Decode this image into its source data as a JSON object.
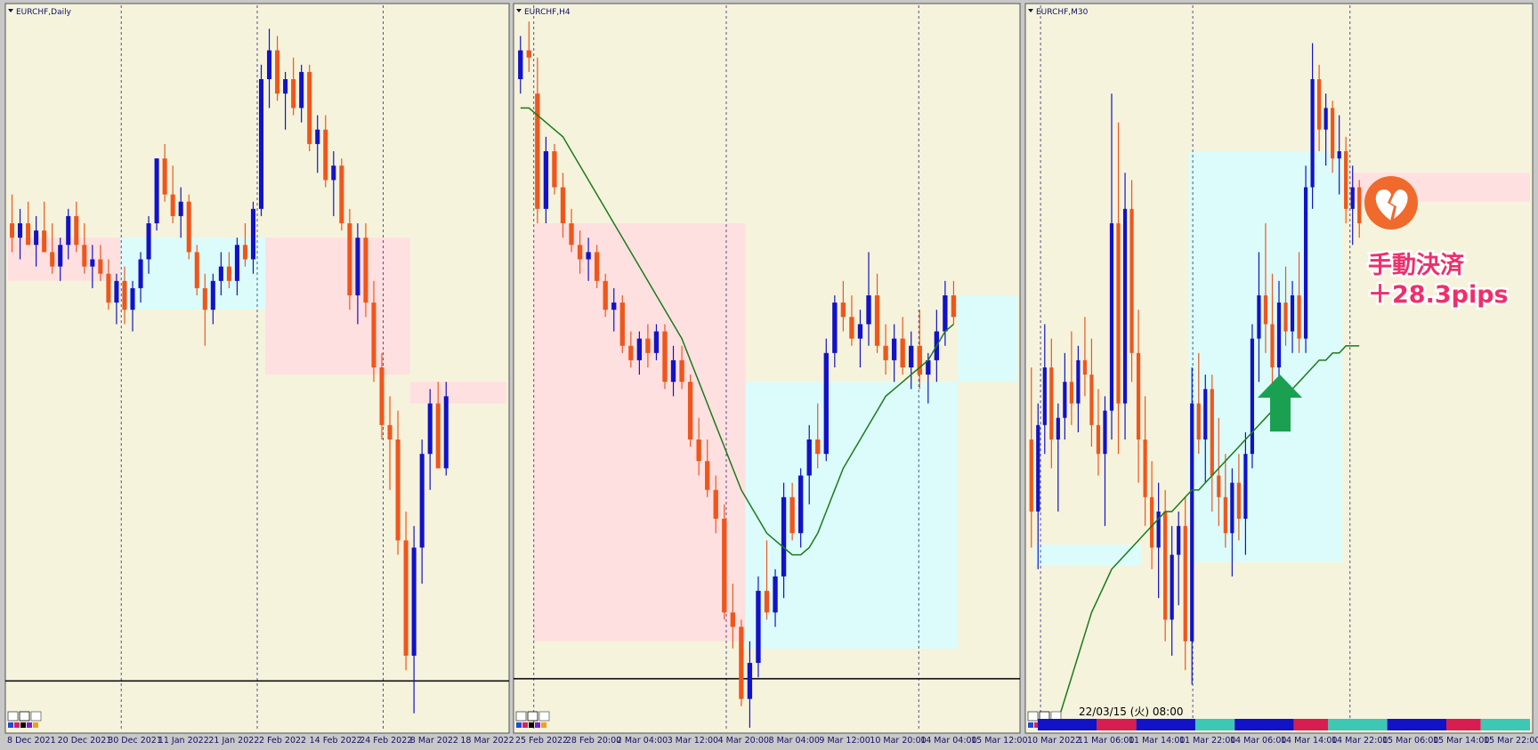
{
  "chart_data": [
    {
      "type": "candlestick",
      "title": "EURCHF,Daily",
      "ylim": [
        0,
        100
      ],
      "up_color": "#1212c8",
      "down_color": "#f0561c",
      "x_labels": [
        "8 Dec 2021",
        "20 Dec 2021",
        "30 Dec 2021",
        "11 Jan 2022",
        "21 Jan 2022",
        "2 Feb 2022",
        "14 Feb 2022",
        "24 Feb 2022",
        "8 Mar 2022",
        "18 Mar 2022"
      ],
      "candles": [
        [
          70,
          74,
          66,
          68
        ],
        [
          68,
          72,
          65,
          70
        ],
        [
          70,
          73,
          67,
          67
        ],
        [
          67,
          71,
          64,
          69
        ],
        [
          69,
          73,
          66,
          66
        ],
        [
          66,
          70,
          63,
          64
        ],
        [
          64,
          68,
          62,
          67
        ],
        [
          67,
          72,
          65,
          71
        ],
        [
          71,
          73,
          66,
          67
        ],
        [
          67,
          70,
          63,
          64
        ],
        [
          64,
          67,
          61,
          65
        ],
        [
          65,
          67,
          62,
          63
        ],
        [
          63,
          65,
          58,
          59
        ],
        [
          59,
          63,
          56,
          62
        ],
        [
          62,
          64,
          56,
          58
        ],
        [
          58,
          62,
          55,
          61
        ],
        [
          61,
          66,
          59,
          65
        ],
        [
          65,
          71,
          63,
          70
        ],
        [
          70,
          79,
          69,
          79
        ],
        [
          79,
          81,
          73,
          74
        ],
        [
          74,
          78,
          70,
          71
        ],
        [
          71,
          75,
          68,
          73
        ],
        [
          73,
          74,
          65,
          66
        ],
        [
          66,
          67,
          60,
          61
        ],
        [
          61,
          63,
          53,
          58
        ],
        [
          58,
          63,
          56,
          62
        ],
        [
          62,
          66,
          60,
          64
        ],
        [
          64,
          66,
          61,
          62
        ],
        [
          62,
          68,
          60,
          67
        ],
        [
          67,
          70,
          64,
          65
        ],
        [
          65,
          73,
          63,
          72
        ],
        [
          72,
          92,
          71,
          90
        ],
        [
          90,
          97,
          86,
          94
        ],
        [
          94,
          96,
          87,
          88
        ],
        [
          88,
          91,
          83,
          90
        ],
        [
          90,
          93,
          85,
          86
        ],
        [
          86,
          92,
          84,
          91
        ],
        [
          91,
          92,
          80,
          81
        ],
        [
          81,
          85,
          77,
          83
        ],
        [
          83,
          85,
          75,
          76
        ],
        [
          76,
          80,
          71,
          78
        ],
        [
          78,
          79,
          69,
          70
        ],
        [
          70,
          72,
          58,
          60
        ],
        [
          60,
          70,
          56,
          68
        ],
        [
          68,
          70,
          57,
          59
        ],
        [
          59,
          62,
          48,
          50
        ],
        [
          50,
          52,
          40,
          42
        ],
        [
          42,
          46,
          33,
          40
        ],
        [
          40,
          44,
          24,
          26
        ],
        [
          26,
          30,
          8,
          10
        ],
        [
          10,
          28,
          2,
          25
        ],
        [
          25,
          40,
          20,
          38
        ],
        [
          38,
          47,
          33,
          45
        ],
        [
          45,
          48,
          36,
          36
        ],
        [
          36,
          48,
          35,
          46
        ]
      ],
      "zones": [
        {
          "x": [
            0,
            14
          ],
          "y": [
            62,
            68
          ],
          "color": "#ffe0e0"
        },
        {
          "x": [
            14,
            33
          ],
          "y": [
            58,
            68
          ],
          "color": "#dcfcfb"
        },
        {
          "x": [
            32,
            50
          ],
          "y": [
            49,
            68
          ],
          "color": "#ffe0e0"
        },
        {
          "x": [
            50,
            62
          ],
          "y": [
            45,
            48
          ],
          "color": "#ffe0e0"
        }
      ],
      "hline": 6.5
    },
    {
      "type": "candlestick",
      "title": "EURCHF,H4",
      "ylim": [
        0,
        100
      ],
      "up_color": "#1212c8",
      "down_color": "#f0561c",
      "x_labels": [
        "25 Feb 2022",
        "28 Feb 20:00",
        "2 Mar 04:00",
        "3 Mar 12:00",
        "4 Mar 20:00",
        "8 Mar 04:00",
        "9 Mar 12:00",
        "10 Mar 20:00",
        "14 Mar 04:00",
        "15 Mar 12:00"
      ],
      "candles": [
        [
          90,
          96,
          88,
          94
        ],
        [
          94,
          98,
          91,
          93
        ],
        [
          88,
          93,
          70,
          72
        ],
        [
          72,
          82,
          70,
          80
        ],
        [
          80,
          81,
          74,
          75
        ],
        [
          75,
          77,
          68,
          70
        ],
        [
          70,
          72,
          66,
          67
        ],
        [
          67,
          69,
          63,
          65
        ],
        [
          65,
          68,
          62,
          66
        ],
        [
          66,
          67,
          61,
          62
        ],
        [
          62,
          63,
          57,
          58
        ],
        [
          58,
          61,
          55,
          59
        ],
        [
          59,
          60,
          52,
          53
        ],
        [
          53,
          55,
          50,
          51
        ],
        [
          51,
          55,
          49,
          54
        ],
        [
          54,
          56,
          50,
          52
        ],
        [
          52,
          56,
          51,
          55
        ],
        [
          55,
          56,
          47,
          48
        ],
        [
          48,
          53,
          46,
          51
        ],
        [
          51,
          53,
          47,
          48
        ],
        [
          48,
          49,
          39,
          40
        ],
        [
          40,
          43,
          35,
          37
        ],
        [
          37,
          40,
          32,
          33
        ],
        [
          33,
          35,
          27,
          29
        ],
        [
          29,
          31,
          15,
          16
        ],
        [
          16,
          20,
          11,
          14
        ],
        [
          14,
          15,
          3,
          4
        ],
        [
          4,
          12,
          0,
          9
        ],
        [
          9,
          21,
          7,
          19
        ],
        [
          19,
          26,
          15,
          16
        ],
        [
          16,
          22,
          14,
          21
        ],
        [
          21,
          34,
          18,
          32
        ],
        [
          32,
          34,
          26,
          27
        ],
        [
          27,
          36,
          25,
          35
        ],
        [
          35,
          42,
          31,
          40
        ],
        [
          40,
          45,
          36,
          38
        ],
        [
          38,
          54,
          37,
          52
        ],
        [
          52,
          60,
          50,
          59
        ],
        [
          59,
          62,
          55,
          57
        ],
        [
          57,
          60,
          53,
          54
        ],
        [
          54,
          58,
          50,
          56
        ],
        [
          56,
          66,
          53,
          60
        ],
        [
          60,
          63,
          52,
          53
        ],
        [
          53,
          56,
          49,
          51
        ],
        [
          51,
          56,
          48,
          54
        ],
        [
          54,
          57,
          49,
          50
        ],
        [
          50,
          55,
          47,
          53
        ],
        [
          53,
          58,
          47,
          49
        ],
        [
          49,
          52,
          45,
          51
        ],
        [
          51,
          58,
          48,
          55
        ],
        [
          55,
          62,
          53,
          60
        ],
        [
          60,
          62,
          56,
          57
        ]
      ],
      "zones": [
        {
          "x": [
            2,
            27
          ],
          "y": [
            12,
            70
          ],
          "color": "#ffe0e0"
        },
        {
          "x": [
            27,
            52
          ],
          "y": [
            11,
            48
          ],
          "color": "#dcfcfb"
        },
        {
          "x": [
            52,
            59
          ],
          "y": [
            48,
            60
          ],
          "color": "#dcfcfb"
        }
      ],
      "ma": {
        "color": "#1b7a1b",
        "values": [
          86,
          86,
          85,
          84,
          83,
          82,
          80,
          78,
          76,
          74,
          72,
          70,
          68,
          66,
          64,
          62,
          60,
          58,
          56,
          54,
          51,
          48,
          45,
          42,
          39,
          36,
          33,
          31,
          29,
          27,
          26,
          25,
          24,
          24,
          25,
          27,
          30,
          33,
          36,
          38,
          40,
          42,
          44,
          46,
          47,
          48,
          49,
          50,
          51,
          53,
          55,
          56
        ]
      },
      "hline": 6.8
    },
    {
      "type": "candlestick",
      "title": "EURCHF,M30",
      "ylim": [
        0,
        100
      ],
      "up_color": "#1212c8",
      "down_color": "#f0561c",
      "x_labels": [
        "10 Mar 2022",
        "11 Mar 06:00",
        "11 Mar 14:00",
        "11 Mar 22:00",
        "14 Mar 06:00",
        "14 Mar 14:00",
        "14 Mar 22:00",
        "15 Mar 06:00",
        "15 Mar 14:00",
        "15 Mar 22:00"
      ],
      "candles": [
        [
          40,
          50,
          25,
          30
        ],
        [
          30,
          45,
          22,
          42
        ],
        [
          42,
          56,
          38,
          50
        ],
        [
          50,
          54,
          36,
          40
        ],
        [
          40,
          45,
          30,
          43
        ],
        [
          43,
          52,
          40,
          48
        ],
        [
          48,
          55,
          42,
          45
        ],
        [
          45,
          53,
          41,
          51
        ],
        [
          51,
          57,
          46,
          49
        ],
        [
          49,
          54,
          39,
          42
        ],
        [
          42,
          47,
          35,
          38
        ],
        [
          38,
          46,
          28,
          44
        ],
        [
          44,
          88,
          40,
          70
        ],
        [
          70,
          84,
          38,
          45
        ],
        [
          45,
          77,
          40,
          72
        ],
        [
          72,
          76,
          48,
          52
        ],
        [
          52,
          58,
          34,
          40
        ],
        [
          40,
          46,
          28,
          32
        ],
        [
          32,
          37,
          22,
          25
        ],
        [
          25,
          34,
          18,
          30
        ],
        [
          30,
          33,
          12,
          15
        ],
        [
          15,
          28,
          10,
          24
        ],
        [
          24,
          30,
          17,
          28
        ],
        [
          28,
          32,
          8,
          12
        ],
        [
          12,
          50,
          6,
          45
        ],
        [
          45,
          52,
          38,
          40
        ],
        [
          40,
          49,
          34,
          47
        ],
        [
          47,
          49,
          30,
          35
        ],
        [
          35,
          43,
          28,
          32
        ],
        [
          32,
          38,
          25,
          27
        ],
        [
          27,
          36,
          21,
          34
        ],
        [
          34,
          38,
          26,
          29
        ],
        [
          29,
          41,
          24,
          38
        ],
        [
          38,
          56,
          36,
          54
        ],
        [
          54,
          66,
          48,
          60
        ],
        [
          60,
          70,
          52,
          56
        ],
        [
          56,
          63,
          45,
          50
        ],
        [
          50,
          62,
          48,
          59
        ],
        [
          59,
          64,
          53,
          55
        ],
        [
          55,
          62,
          52,
          60
        ],
        [
          60,
          66,
          52,
          54
        ],
        [
          54,
          78,
          52,
          75
        ],
        [
          75,
          95,
          72,
          90
        ],
        [
          90,
          92,
          80,
          83
        ],
        [
          83,
          88,
          78,
          86
        ],
        [
          86,
          87,
          77,
          79
        ],
        [
          79,
          85,
          74,
          80
        ],
        [
          80,
          82,
          70,
          72
        ],
        [
          72,
          78,
          67,
          75
        ],
        [
          75,
          76,
          68,
          70
        ]
      ],
      "zones": [
        {
          "x": [
            1,
            17
          ],
          "y": [
            22.6,
            25.4
          ],
          "color": "#dcfcfb"
        },
        {
          "x": [
            24,
            47
          ],
          "y": [
            23,
            80
          ],
          "color": "#dcfcfb"
        },
        {
          "x": [
            48,
            75
          ],
          "y": [
            73,
            77
          ],
          "color": "#ffe0e0"
        }
      ],
      "ma": {
        "color": "#1b7a1b",
        "values": [
          null,
          null,
          null,
          null,
          1,
          4,
          7,
          10,
          13,
          16,
          18,
          20,
          22,
          23,
          24,
          25,
          26,
          27,
          28,
          29,
          30,
          30,
          31,
          32,
          33,
          33,
          34,
          35,
          36,
          37,
          38,
          39,
          40,
          41,
          42,
          43,
          44,
          45,
          46,
          47,
          48,
          49,
          50,
          51,
          51,
          52,
          52,
          53,
          53,
          53
        ]
      },
      "annotations": [
        "手動決済",
        "＋28.3pips",
        "22/03/15 (火) 08:00"
      ]
    }
  ]
}
